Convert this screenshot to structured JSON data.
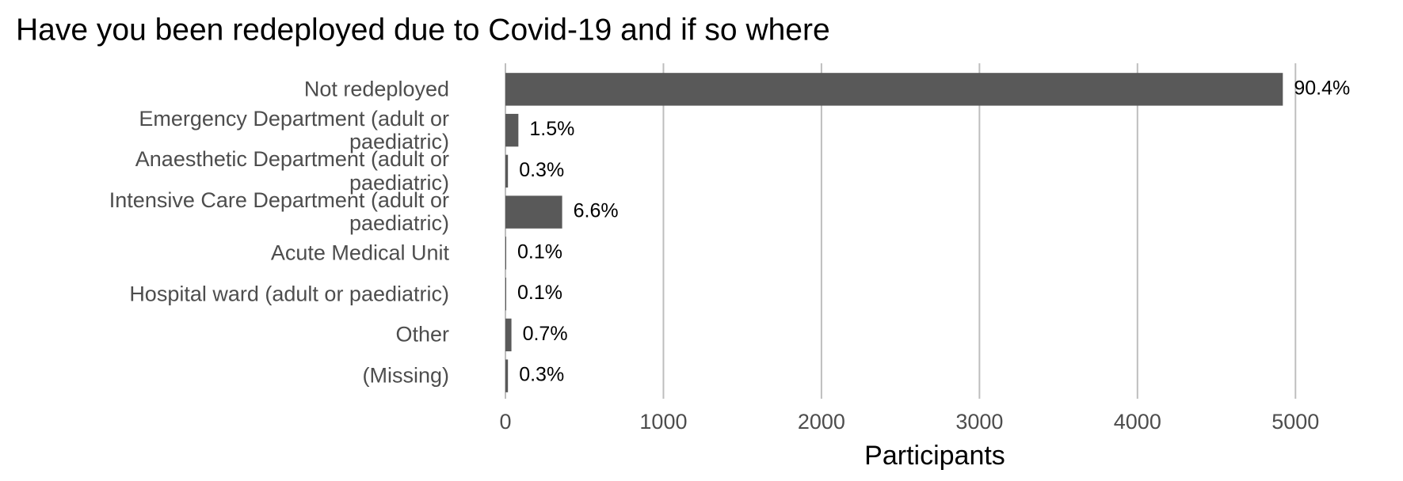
{
  "chart_data": {
    "type": "bar",
    "orientation": "horizontal",
    "title": "Have you been redeployed due to Covid-19 and if so where",
    "x_label": "Participants",
    "categories": [
      "Not redeployed",
      "Emergency Department (adult or paediatric)",
      "Anaesthetic Department (adult or paediatric)",
      "Intensive Care Department (adult or paediatric)",
      "Acute Medical Unit",
      "Hospital ward (adult or paediatric)",
      "Other",
      "(Missing)"
    ],
    "values": [
      4920,
      82,
      16,
      359,
      5,
      5,
      38,
      16
    ],
    "value_labels": [
      "90.4%",
      "1.5%",
      "0.3%",
      "6.6%",
      "0.1%",
      "0.1%",
      "0.7%",
      "0.3%"
    ],
    "color": "#595959",
    "xlim": [
      0,
      5500
    ],
    "xticks": [
      0,
      1000,
      2000,
      3000,
      4000,
      5000
    ],
    "grid": true
  }
}
